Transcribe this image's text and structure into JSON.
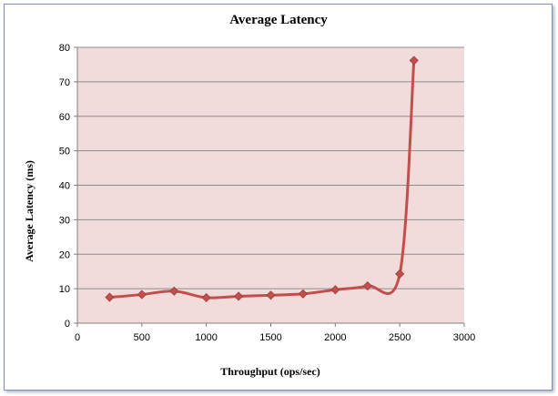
{
  "chart_data": {
    "type": "line",
    "title": "Average Latency",
    "xlabel": "Throughput (ops/sec)",
    "ylabel": "Average Latency (ms)",
    "xlim": [
      0,
      3000
    ],
    "ylim": [
      0,
      80
    ],
    "xticks": [
      "0",
      "500",
      "1000",
      "1500",
      "2000",
      "2500",
      "3000"
    ],
    "yticks": [
      "0",
      "10",
      "20",
      "30",
      "40",
      "50",
      "60",
      "70",
      "80"
    ],
    "grid": true,
    "legend": "none",
    "series": [
      {
        "name": "Average Latency",
        "color": "#c0504d",
        "x": [
          250,
          500,
          750,
          1000,
          1250,
          1500,
          1750,
          2000,
          2250,
          2500,
          2610
        ],
        "y": [
          7.5,
          8.3,
          9.3,
          7.4,
          7.8,
          8.1,
          8.5,
          9.7,
          10.8,
          14.3,
          76.2
        ]
      }
    ],
    "plot_background": "#f2dcdb",
    "grid_color": "#8c8c8c"
  }
}
